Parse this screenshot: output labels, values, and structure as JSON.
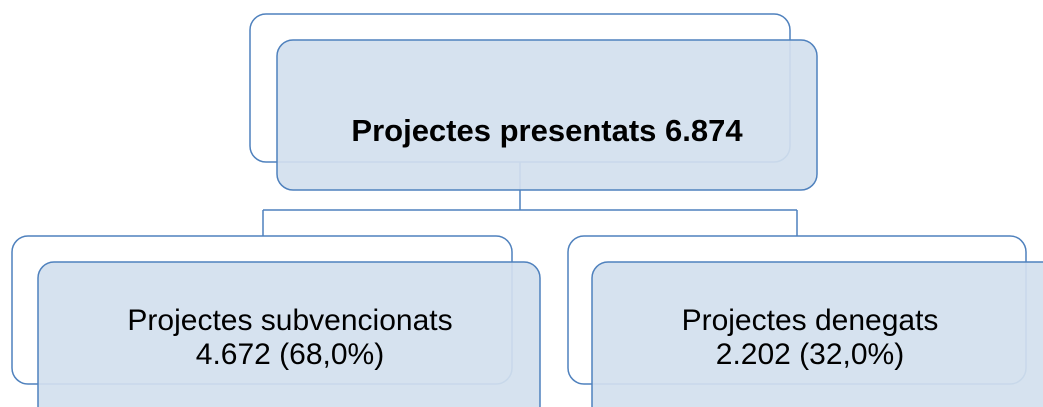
{
  "nodes": [
    {
      "lines": [
        "Projectes presentats 6.874"
      ]
    },
    {
      "lines": [
        "Projectes subvencionats",
        "4.672 (68,0%)"
      ]
    },
    {
      "lines": [
        "Projectes denegats",
        "2.202 (32,0%)"
      ]
    }
  ]
}
